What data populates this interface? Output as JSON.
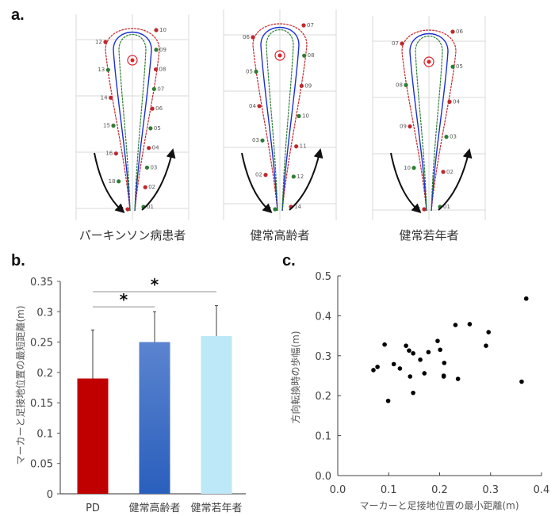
{
  "figure": {
    "panel_labels": [
      "a.",
      "b.",
      "c."
    ]
  },
  "panel_a": {
    "tracks": [
      {
        "caption": "パーキンソン病患者",
        "right_labels": [
          "10",
          "09",
          "08",
          "07",
          "06",
          "05",
          "04",
          "03",
          "02",
          "01"
        ],
        "left_labels": [
          "12",
          "13",
          "14",
          "15",
          "16",
          "18",
          "21"
        ],
        "colors": {
          "left": "#c0282d",
          "center": "#1a2fd0",
          "right": "#2e7d32"
        }
      },
      {
        "caption": "健常高齢者",
        "right_labels": [
          "07",
          "08",
          "09",
          "10",
          "11",
          "12",
          "14"
        ],
        "left_labels": [
          "06",
          "05",
          "04",
          "03",
          "02",
          "01"
        ],
        "colors": {
          "left": "#c0282d",
          "center": "#1a2fd0",
          "right": "#2e7d32"
        }
      },
      {
        "caption": "健常若年者",
        "right_labels": [
          "06",
          "05",
          "04",
          "03",
          "02",
          "01"
        ],
        "left_labels": [
          "07",
          "08",
          "09",
          "10",
          "11"
        ],
        "colors": {
          "left": "#c0282d",
          "center": "#1a2fd0",
          "right": "#2e7d32"
        }
      }
    ]
  },
  "chart_data": [
    {
      "type": "bar",
      "panel": "b",
      "title": "",
      "xlabel": "",
      "ylabel": "マーカーと足接地位置の最短距離(m)",
      "categories": [
        "PD",
        "健常高齢者",
        "健常若年者"
      ],
      "values": [
        0.19,
        0.25,
        0.26
      ],
      "error_upper": [
        0.08,
        0.05,
        0.05
      ],
      "colors": [
        "#c00000",
        "#3a6cc8",
        "#bde8f7"
      ],
      "ylim": [
        0,
        0.35
      ],
      "yticks": [
        "0",
        "0.05",
        "0.1",
        "0.15",
        "0.2",
        "0.25",
        "0.3",
        "0.35"
      ],
      "significance": [
        {
          "from": "PD",
          "to": "健常高齢者",
          "label": "*"
        },
        {
          "from": "PD",
          "to": "健常若年者",
          "label": "*"
        }
      ],
      "grid": false,
      "legend": "none"
    },
    {
      "type": "scatter",
      "panel": "c",
      "title": "",
      "xlabel": "マーカーと足接地位置の最小距離(m)",
      "ylabel": "方向転換時の歩幅(m)",
      "xlim": [
        0.0,
        0.4
      ],
      "ylim": [
        0.0,
        0.5
      ],
      "xticks": [
        "0.0",
        "0.1",
        "0.2",
        "0.3",
        "0.4"
      ],
      "yticks": [
        "0.0",
        "0.1",
        "0.2",
        "0.3",
        "0.4",
        "0.5"
      ],
      "points": [
        [
          0.07,
          0.264
        ],
        [
          0.078,
          0.272
        ],
        [
          0.092,
          0.328
        ],
        [
          0.099,
          0.187
        ],
        [
          0.11,
          0.279
        ],
        [
          0.122,
          0.268
        ],
        [
          0.134,
          0.325
        ],
        [
          0.14,
          0.313
        ],
        [
          0.142,
          0.248
        ],
        [
          0.148,
          0.306
        ],
        [
          0.148,
          0.207
        ],
        [
          0.162,
          0.29
        ],
        [
          0.17,
          0.256
        ],
        [
          0.178,
          0.309
        ],
        [
          0.196,
          0.337
        ],
        [
          0.201,
          0.315
        ],
        [
          0.209,
          0.282
        ],
        [
          0.208,
          0.25
        ],
        [
          0.208,
          0.248
        ],
        [
          0.231,
          0.377
        ],
        [
          0.236,
          0.242
        ],
        [
          0.259,
          0.379
        ],
        [
          0.291,
          0.325
        ],
        [
          0.296,
          0.359
        ],
        [
          0.361,
          0.235
        ],
        [
          0.37,
          0.443
        ]
      ],
      "grid": false,
      "legend": "none"
    }
  ]
}
